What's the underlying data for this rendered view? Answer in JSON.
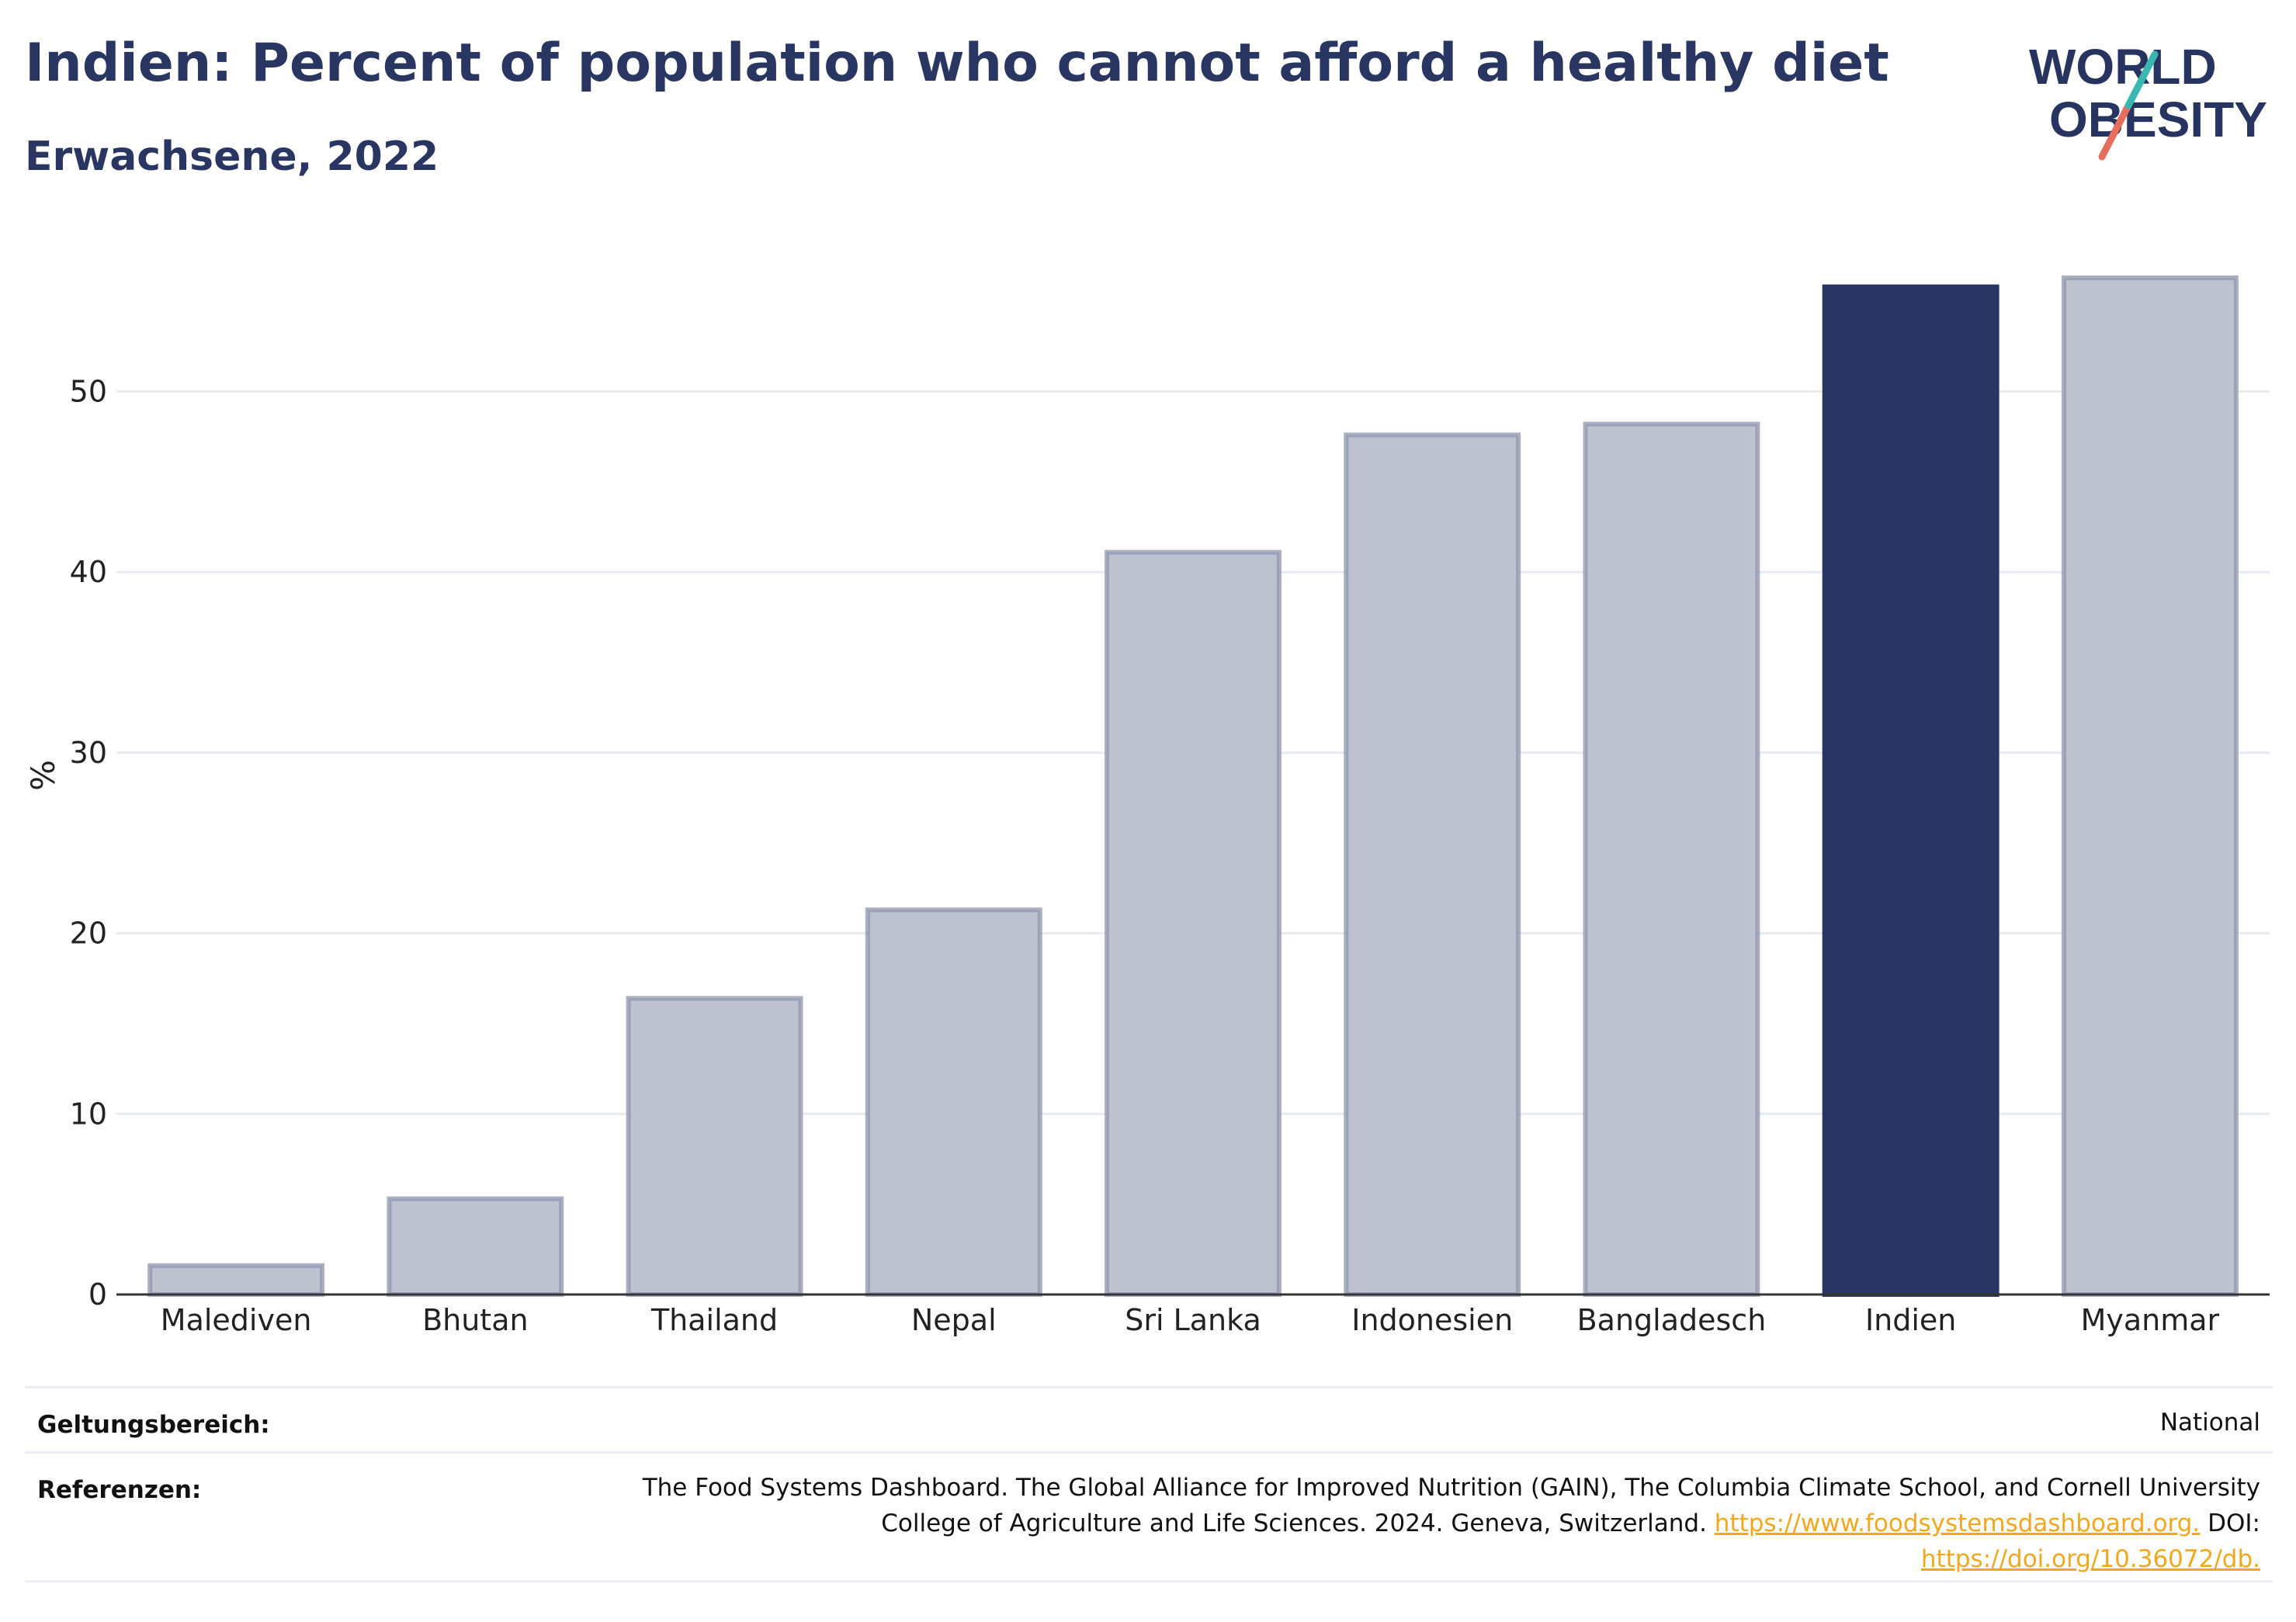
{
  "header": {
    "title": "Indien: Percent of population who cannot afford a healthy diet",
    "subtitle": "Erwachsene, 2022"
  },
  "logo": {
    "line1": "WORLD",
    "line2": "OBESITY"
  },
  "chart_data": {
    "type": "bar",
    "title": "Indien: Percent of population who cannot afford a healthy diet",
    "subtitle": "Erwachsene, 2022",
    "xlabel": "",
    "ylabel": "%",
    "categories": [
      "Malediven",
      "Bhutan",
      "Thailand",
      "Nepal",
      "Sri Lanka",
      "Indonesien",
      "Bangladesch",
      "Indien",
      "Myanmar"
    ],
    "values": [
      1.6,
      5.3,
      16.4,
      21.3,
      41.1,
      47.6,
      48.2,
      55.8,
      56.3
    ],
    "highlight": "Indien",
    "ylim": [
      0,
      57.5
    ],
    "yticks": [
      0,
      10,
      20,
      30,
      40,
      50
    ],
    "grid": true,
    "colors": {
      "bar": "#bec2ce",
      "bar_border": "#8d94ad",
      "highlight": "#293563",
      "grid": "#e9eaf0",
      "axis": "#333333"
    }
  },
  "footer": {
    "scope_label": "Geltungsbereich:",
    "scope_value": "National",
    "refs_label": "Referenzen:",
    "refs_line1": "The Food Systems Dashboard. The Global Alliance for Improved Nutrition (GAIN), The Columbia Climate School, and Cornell University",
    "refs_line2_text": "College of Agriculture and Life Sciences. 2024. Geneva, Switzerland.",
    "refs_link1": "https://www.foodsystemsdashboard.org.",
    "refs_doi_label": "DOI:",
    "refs_link2": "https://doi.org/10.36072/db."
  }
}
